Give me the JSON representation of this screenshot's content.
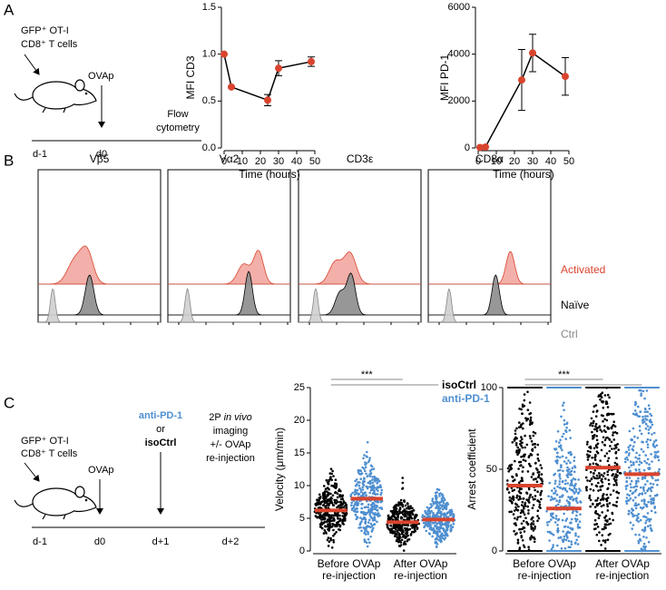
{
  "panel_labels": [
    "A",
    "B",
    "C"
  ],
  "schematic_a": {
    "cells": [
      "GFP⁺ OT-I",
      "CD8⁺ T cells"
    ],
    "injection": "OVAp",
    "readout": [
      "Flow",
      "cytometry"
    ],
    "days": [
      "d-1",
      "d0"
    ]
  },
  "histograms": {
    "markers": [
      "Vβ5",
      "Vα2",
      "CD3ε",
      "CD8α"
    ],
    "conditions": [
      "Activated",
      "Naïve",
      "Ctrl"
    ],
    "colors": [
      "#d9442e",
      "#000000",
      "#888888"
    ]
  },
  "schematic_c": {
    "cells": [
      "GFP⁺ OT-I",
      "CD8⁺ T cells"
    ],
    "injection": "OVAp",
    "treatment": [
      "anti-PD-1",
      "or",
      "isoCtrl"
    ],
    "imaging": [
      "2P",
      "in vivo",
      "imaging",
      "+/- OVAp",
      "re-injection"
    ],
    "days": [
      "d-1",
      "d0",
      "d+1",
      "d+2"
    ]
  },
  "chart_data": [
    {
      "type": "line",
      "ylabel": "MFI CD3",
      "xlabel": "Time (hours)",
      "x": [
        0,
        4,
        24,
        30,
        48
      ],
      "values": [
        1.0,
        0.65,
        0.51,
        0.85,
        0.92
      ],
      "errors": [
        0,
        0,
        0.06,
        0.08,
        0.05
      ],
      "color": "#d9442e",
      "xlim": [
        0,
        50
      ],
      "xticks": [
        0,
        10,
        20,
        30,
        40,
        50
      ],
      "ylim": [
        0,
        1.5
      ],
      "yticks": [
        {
          "value": 0,
          "label": "0.0"
        },
        0.5,
        {
          "value": 1,
          "label": "1.0"
        },
        1.5
      ]
    },
    {
      "type": "line",
      "ylabel": "MFI PD-1",
      "xlabel": "Time (hours)",
      "x": [
        1,
        4,
        24,
        30,
        48
      ],
      "values": [
        20,
        40,
        2900,
        4050,
        3050
      ],
      "errors": [
        0,
        0,
        1300,
        800,
        800
      ],
      "color": "#d9442e",
      "xlim": [
        0,
        50
      ],
      "xticks": [
        0,
        10,
        20,
        30,
        40,
        50
      ],
      "ylim": [
        0,
        6000
      ],
      "yticks": [
        0,
        2000,
        4000,
        6000
      ]
    },
    {
      "type": "strip",
      "ylabel": "Velocity (μm/min)",
      "groups": [
        [
          "Before OVAp",
          "re-injection"
        ],
        [
          "After OVAp",
          "re-injection"
        ]
      ],
      "series": [
        {
          "name": "isoCtrl",
          "color": "#000000",
          "values": [
            6.2,
            4.4
          ]
        },
        {
          "name": "anti-PD-1",
          "color": "#4f8fd0",
          "values": [
            8.0,
            4.8
          ]
        }
      ],
      "median_color": "#d9442e",
      "ylim": [
        0,
        25
      ],
      "yticks": [
        0,
        5,
        10,
        15,
        20,
        25
      ],
      "annotation": "***"
    },
    {
      "type": "strip",
      "ylabel": "Arrest coefficient",
      "groups": [
        [
          "Before OVAp",
          "re-injection"
        ],
        [
          "After OVAp",
          "re-injection"
        ]
      ],
      "series": [
        {
          "color": "#000000",
          "values": [
            40,
            51
          ]
        },
        {
          "color": "#4f8fd0",
          "values": [
            26,
            47
          ]
        }
      ],
      "median_color": "#d9442e",
      "ylim": [
        0,
        100
      ],
      "yticks": [
        0,
        50,
        100
      ],
      "annotation": "***"
    }
  ]
}
